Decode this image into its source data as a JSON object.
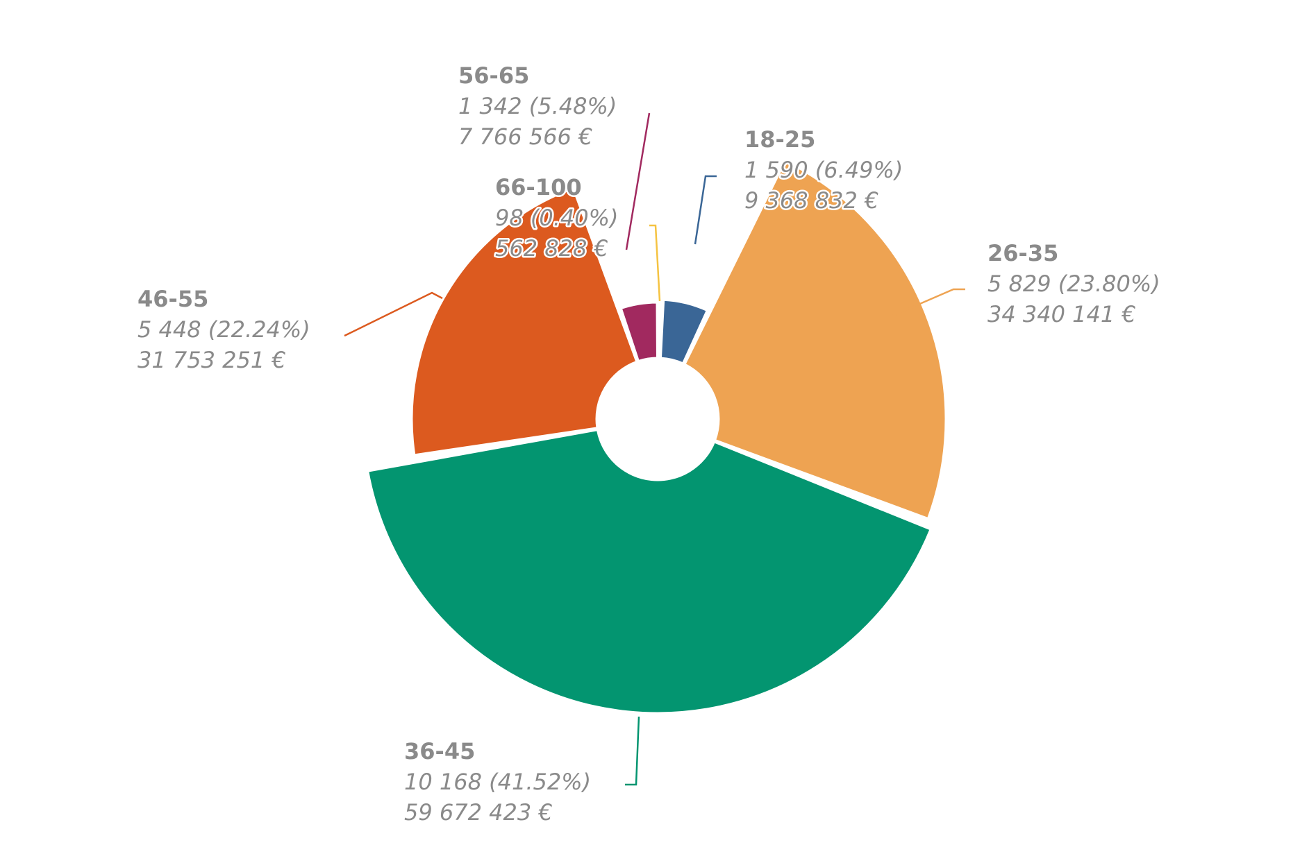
{
  "chart_data": {
    "type": "pie",
    "variant": "variable-radius donut",
    "currency_symbol": "€",
    "slices": [
      {
        "label": "18-25",
        "count": "1 590",
        "percent": "(6.49%)",
        "amount": "9 368 832 €",
        "value": 1590,
        "share": 6.49,
        "sum": 9368832,
        "color": "#3a6696"
      },
      {
        "label": "26-35",
        "count": "5 829",
        "percent": "(23.80%)",
        "amount": "34 340 141 €",
        "value": 5829,
        "share": 23.8,
        "sum": 34340141,
        "color": "#eea352"
      },
      {
        "label": "36-45",
        "count": "10 168",
        "percent": "(41.52%)",
        "amount": "59 672 423 €",
        "value": 10168,
        "share": 41.52,
        "sum": 59672423,
        "color": "#039570"
      },
      {
        "label": "46-55",
        "count": "5 448",
        "percent": "(22.24%)",
        "amount": "31 753 251 €",
        "value": 5448,
        "share": 22.24,
        "sum": 31753251,
        "color": "#dc5a1f"
      },
      {
        "label": "56-65",
        "count": "1 342",
        "percent": "(5.48%)",
        "amount": "7 766 566 €",
        "value": 1342,
        "share": 5.48,
        "sum": 7766566,
        "color": "#a1295f"
      },
      {
        "label": "66-100",
        "count": "98",
        "percent": "(0.40%)",
        "amount": "562 828 €",
        "value": 98,
        "share": 0.4,
        "sum": 562828,
        "color": "#f5c342"
      }
    ]
  }
}
